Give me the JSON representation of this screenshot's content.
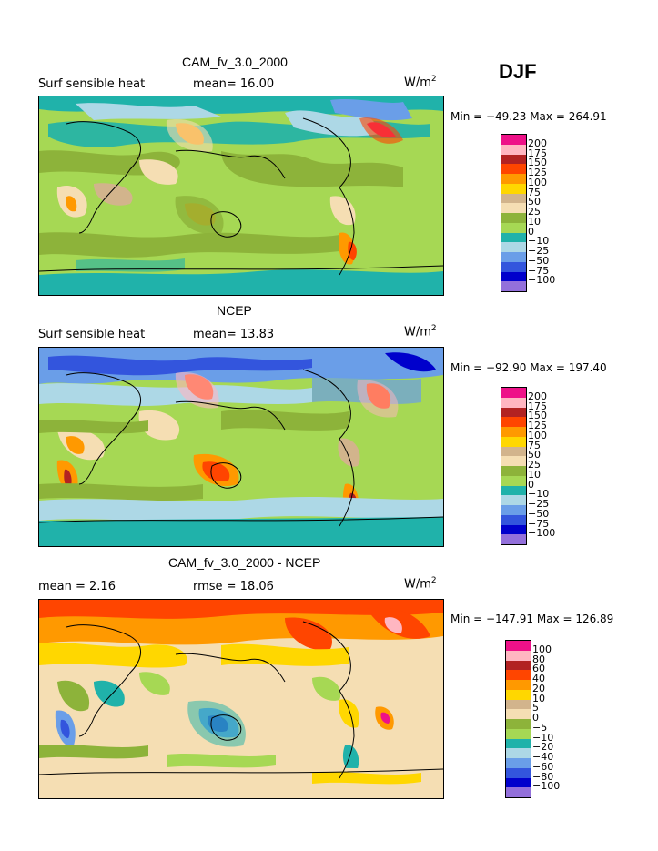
{
  "season": "DJF",
  "panels": [
    {
      "title": "CAM_fv_3.0_2000",
      "left_label": "Surf sensible heat",
      "center_label": "mean=  16.00",
      "unit": "W/m",
      "unit_exp": "2",
      "minmax": "Min = −49.23 Max = 264.91",
      "legend_levels": [
        "200",
        "175",
        "150",
        "125",
        "100",
        "75",
        "50",
        "25",
        "10",
        "0",
        "−10",
        "−25",
        "−50",
        "−75",
        "−100"
      ],
      "legend_colors": [
        "#ee1188",
        "#ffb6c1",
        "#b22222",
        "#ff4500",
        "#ff9900",
        "#ffd700",
        "#d2b48c",
        "#f5deb3",
        "#8db33a",
        "#a6d854",
        "#20b2aa",
        "#add8e6",
        "#6a9ee8",
        "#3355dd",
        "#0000cc",
        "#9370db"
      ]
    },
    {
      "title": "NCEP",
      "left_label": "Surf sensible heat",
      "center_label": "mean=  13.83",
      "unit": "W/m",
      "unit_exp": "2",
      "minmax": "Min = −92.90 Max = 197.40",
      "legend_levels": [
        "200",
        "175",
        "150",
        "125",
        "100",
        "75",
        "50",
        "25",
        "10",
        "0",
        "−10",
        "−25",
        "−50",
        "−75",
        "−100"
      ],
      "legend_colors": [
        "#ee1188",
        "#ffb6c1",
        "#b22222",
        "#ff4500",
        "#ff9900",
        "#ffd700",
        "#d2b48c",
        "#f5deb3",
        "#8db33a",
        "#a6d854",
        "#20b2aa",
        "#add8e6",
        "#6a9ee8",
        "#3355dd",
        "#0000cc",
        "#9370db"
      ]
    },
    {
      "title": "CAM_fv_3.0_2000 - NCEP",
      "left_label": "mean =    2.16",
      "center_label": "rmse =   18.06",
      "unit": "W/m",
      "unit_exp": "2",
      "minmax": "Min = −147.91 Max = 126.89",
      "legend_levels": [
        "100",
        "80",
        "60",
        "40",
        "20",
        "10",
        "5",
        "0",
        "−5",
        "−10",
        "−20",
        "−40",
        "−60",
        "−80",
        "−100"
      ],
      "legend_colors": [
        "#ee1188",
        "#ffb6c1",
        "#b22222",
        "#ff4500",
        "#ff9900",
        "#ffd700",
        "#d2b48c",
        "#f5deb3",
        "#8db33a",
        "#a6d854",
        "#20b2aa",
        "#add8e6",
        "#6a9ee8",
        "#3355dd",
        "#0000cc",
        "#9370db"
      ]
    }
  ]
}
